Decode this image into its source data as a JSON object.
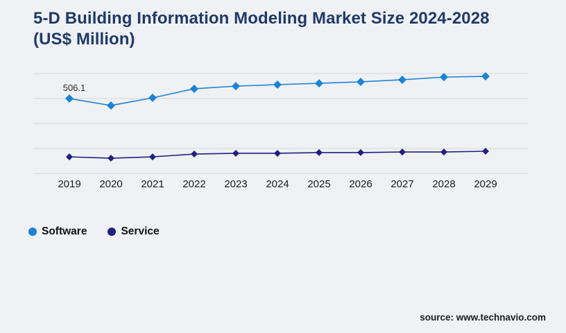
{
  "title": "5-D Building Information Modeling Market Size 2024-2028 (US$ Million)",
  "source": "source: www.technavio.com",
  "legend": [
    {
      "label": "Software",
      "color": "#1a83d6"
    },
    {
      "label": "Service",
      "color": "#21217e"
    }
  ],
  "colors": {
    "title_navy": "#1f3a68",
    "software_blue": "#1a83d6",
    "service_navy": "#21217e",
    "gridline_gray": "#d7d7da",
    "axis_text": "#1a1a1a",
    "background": "#f0f1f4"
  },
  "chart_data": {
    "type": "line",
    "title": "5-D Building Information Modeling Market Size 2024-2028 (US$ Million)",
    "categories": [
      "2019",
      "2020",
      "2021",
      "2022",
      "2023",
      "2024",
      "2025",
      "2026",
      "2027",
      "2028",
      "2029"
    ],
    "series": [
      {
        "name": "Software",
        "color": "#1a83d6",
        "values": [
          506.1,
          459,
          511,
          572,
          590,
          600,
          609,
          619,
          633,
          651,
          656
        ]
      },
      {
        "name": "Service",
        "color": "#21217e",
        "values": [
          112,
          103,
          112,
          131,
          136,
          136,
          141,
          141,
          145,
          145,
          150
        ]
      }
    ],
    "data_labels": [
      {
        "series": "Software",
        "category": "2019",
        "text": "506.1"
      }
    ],
    "xlabel": "",
    "ylabel": "US$ Million",
    "ylim": [
      0,
      675
    ],
    "grid": true,
    "gridline_count": 5,
    "legend_position": "bottom-left"
  }
}
